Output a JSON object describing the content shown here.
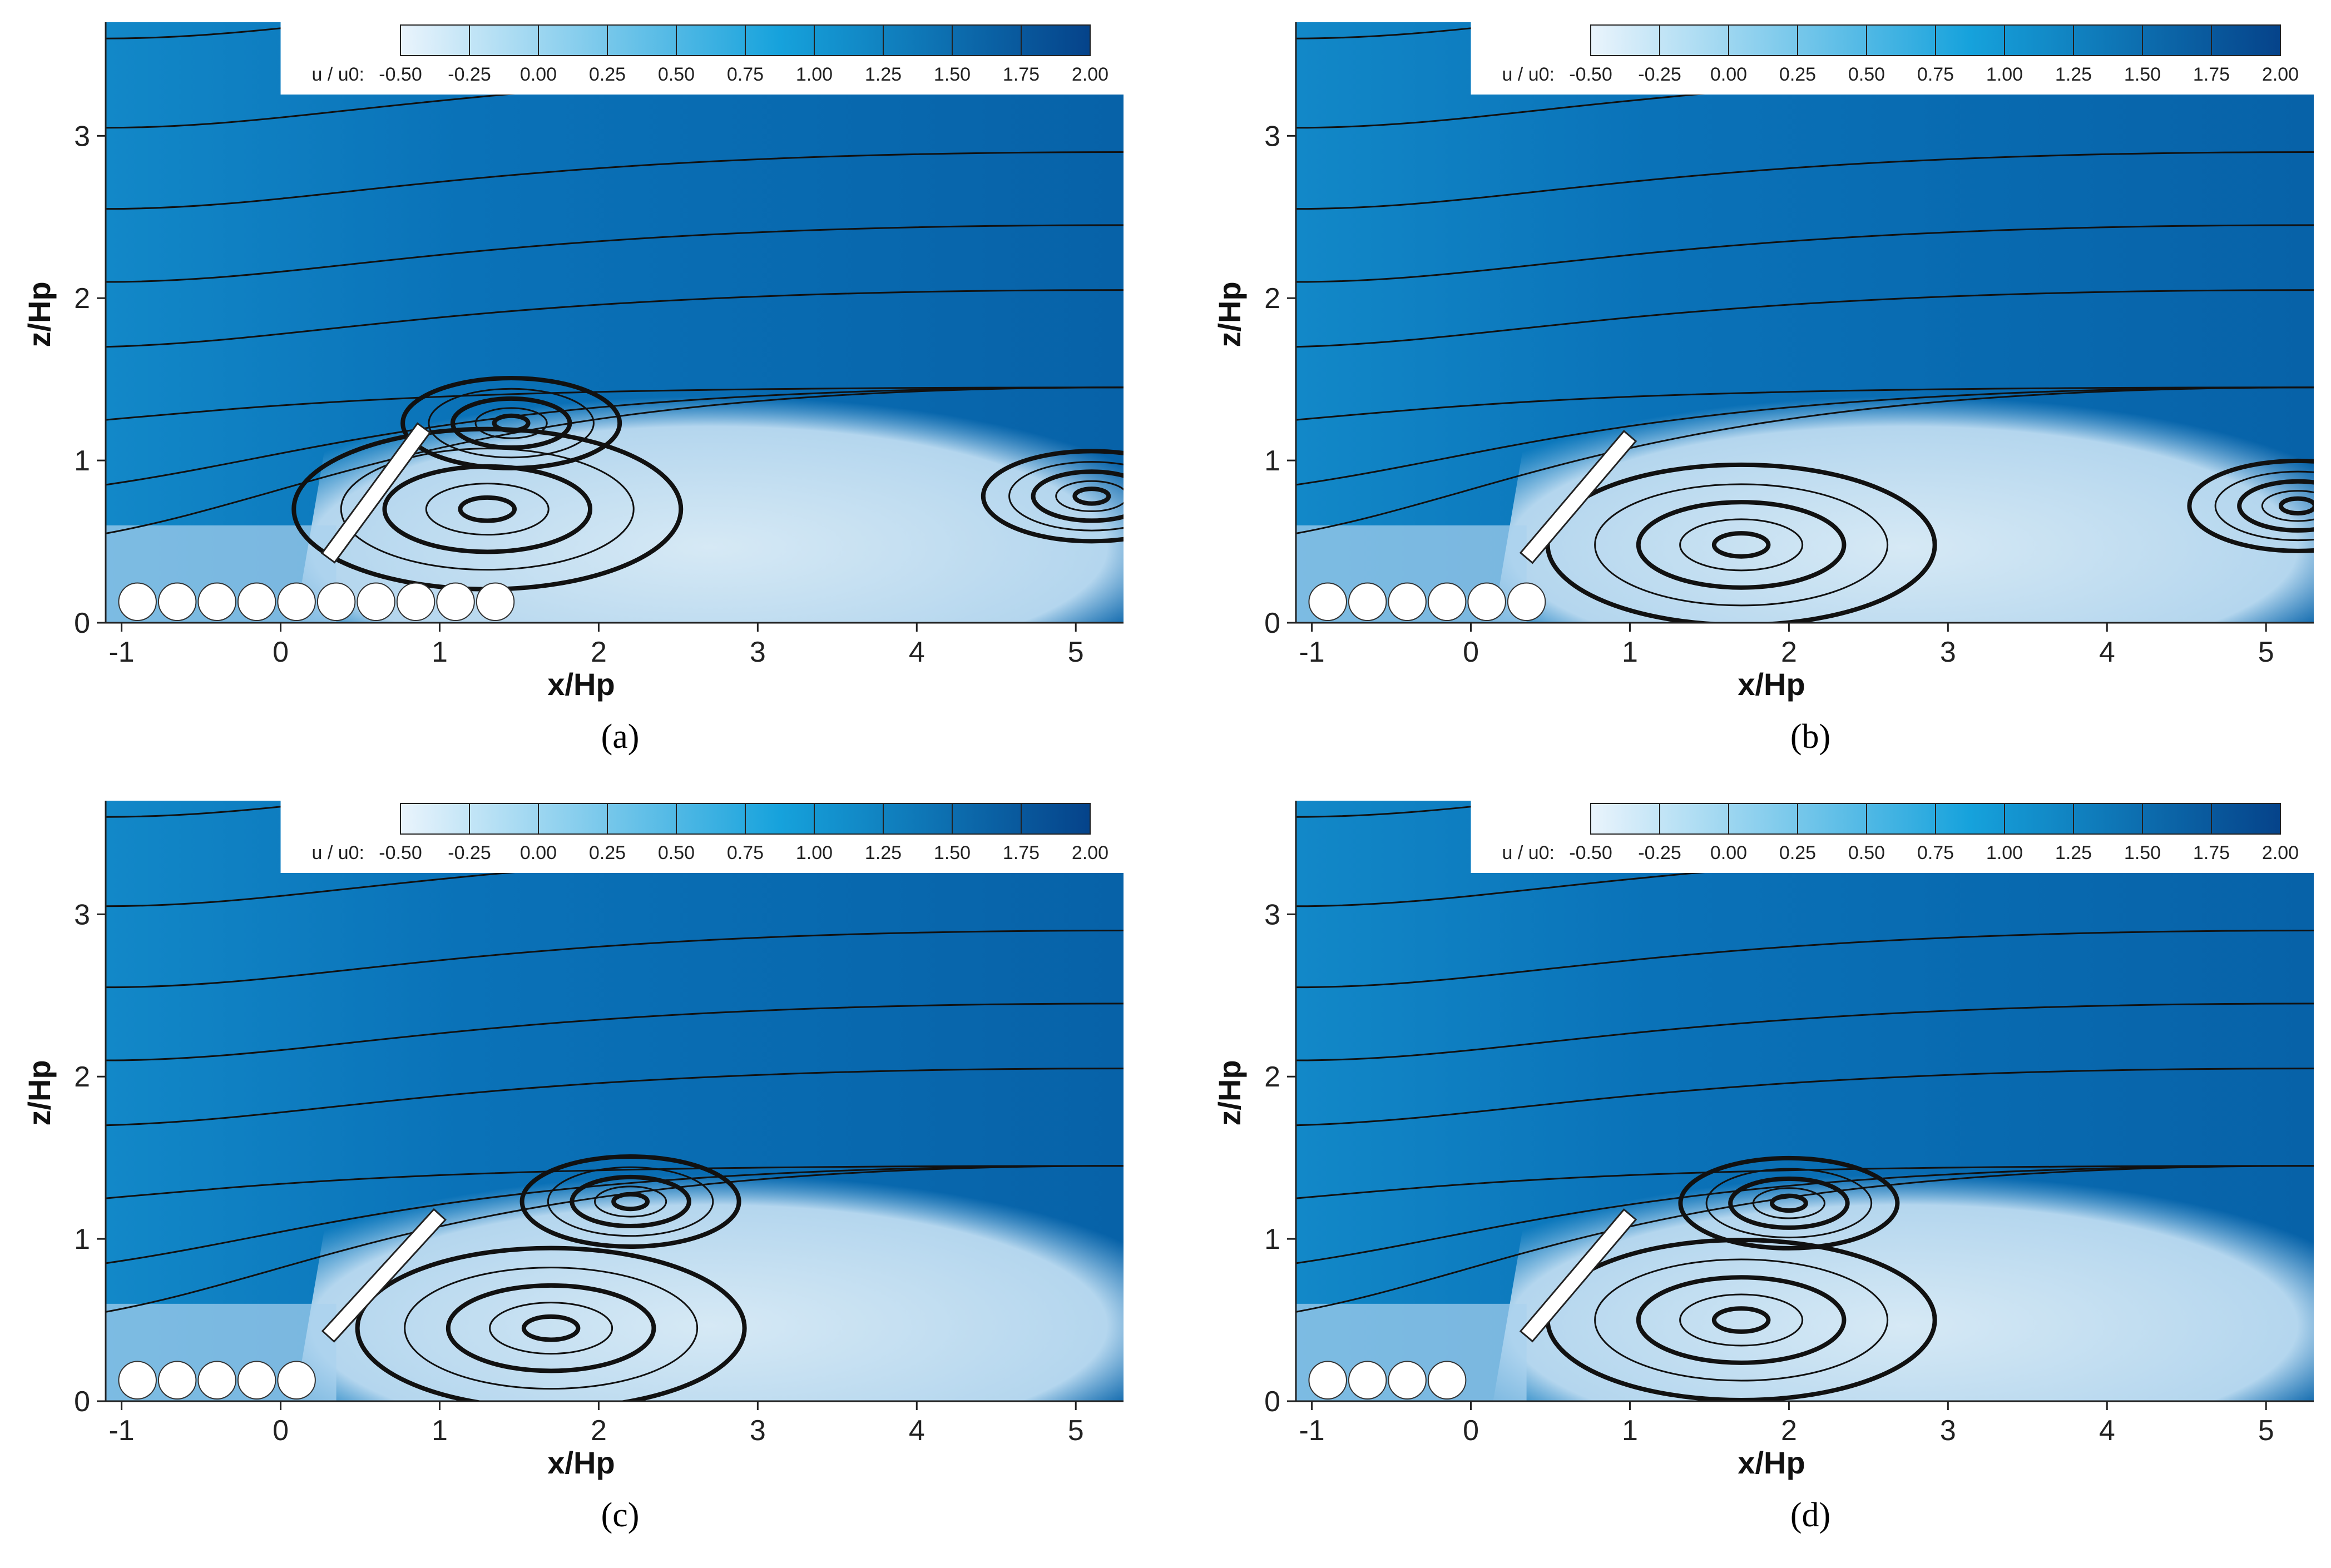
{
  "chart_data": [
    {
      "type": "heatmap",
      "panel": "a",
      "caption": "(a)",
      "xlabel": "x/Hp",
      "ylabel": "z/Hp",
      "xlim": [
        -1.1,
        5.3
      ],
      "ylim": [
        0,
        3.7
      ],
      "xticks": [
        "-1",
        "0",
        "1",
        "2",
        "3",
        "4",
        "5"
      ],
      "yticks": [
        "0",
        "1",
        "2",
        "3"
      ],
      "colorbar": {
        "label": "u / u0:",
        "ticks": [
          "-0.50",
          "-0.25",
          "0.00",
          "0.25",
          "0.50",
          "0.75",
          "1.00",
          "1.25",
          "1.50",
          "1.75",
          "2.00"
        ]
      },
      "cylinders_count": 10,
      "plate": {
        "x_start": 0.3,
        "z_start": 0.4,
        "x_end": 0.9,
        "z_end": 1.2
      },
      "vortices": [
        {
          "x": 1.3,
          "z": 0.7
        },
        {
          "x": 1.45,
          "z": 1.23
        },
        {
          "x": 5.1,
          "z": 0.78
        }
      ]
    },
    {
      "type": "heatmap",
      "panel": "b",
      "caption": "(b)",
      "xlabel": "x/Hp",
      "ylabel": "z/Hp",
      "xlim": [
        -1.1,
        5.3
      ],
      "ylim": [
        0,
        3.7
      ],
      "xticks": [
        "-1",
        "0",
        "1",
        "2",
        "3",
        "4",
        "5"
      ],
      "yticks": [
        "0",
        "1",
        "2",
        "3"
      ],
      "colorbar": {
        "label": "u / u0:",
        "ticks": [
          "-0.50",
          "-0.25",
          "0.00",
          "0.25",
          "0.50",
          "0.75",
          "1.00",
          "1.25",
          "1.50",
          "1.75",
          "2.00"
        ]
      },
      "cylinders_count": 6,
      "plate": {
        "x_start": 0.35,
        "z_start": 0.4,
        "x_end": 1.0,
        "z_end": 1.15
      },
      "vortices": [
        {
          "x": 1.7,
          "z": 0.48
        },
        {
          "x": 5.2,
          "z": 0.72
        }
      ]
    },
    {
      "type": "heatmap",
      "panel": "c",
      "caption": "(c)",
      "xlabel": "x/Hp",
      "ylabel": "z/Hp",
      "xlim": [
        -1.1,
        5.3
      ],
      "ylim": [
        0,
        3.7
      ],
      "xticks": [
        "-1",
        "0",
        "1",
        "2",
        "3",
        "4",
        "5"
      ],
      "yticks": [
        "0",
        "1",
        "2",
        "3"
      ],
      "colorbar": {
        "label": "u / u0:",
        "ticks": [
          "-0.50",
          "-0.25",
          "0.00",
          "0.25",
          "0.50",
          "0.75",
          "1.00",
          "1.25",
          "1.50",
          "1.75",
          "2.00"
        ]
      },
      "cylinders_count": 5,
      "plate": {
        "x_start": 0.3,
        "z_start": 0.4,
        "x_end": 1.0,
        "z_end": 1.15
      },
      "vortices": [
        {
          "x": 1.7,
          "z": 0.45
        },
        {
          "x": 2.2,
          "z": 1.23
        }
      ]
    },
    {
      "type": "heatmap",
      "panel": "d",
      "caption": "(d)",
      "xlabel": "x/Hp",
      "ylabel": "z/Hp",
      "xlim": [
        -1.1,
        5.3
      ],
      "ylim": [
        0,
        3.7
      ],
      "xticks": [
        "-1",
        "0",
        "1",
        "2",
        "3",
        "4",
        "5"
      ],
      "yticks": [
        "0",
        "1",
        "2",
        "3"
      ],
      "colorbar": {
        "label": "u / u0:",
        "ticks": [
          "-0.50",
          "-0.25",
          "0.00",
          "0.25",
          "0.50",
          "0.75",
          "1.00",
          "1.25",
          "1.50",
          "1.75",
          "2.00"
        ]
      },
      "cylinders_count": 4,
      "plate": {
        "x_start": 0.35,
        "z_start": 0.4,
        "x_end": 1.0,
        "z_end": 1.15
      },
      "vortices": [
        {
          "x": 1.7,
          "z": 0.5
        },
        {
          "x": 2.0,
          "z": 1.22
        }
      ]
    }
  ],
  "colors": {
    "free_stream": "#0a72b8",
    "upper_fast": "#0762a8",
    "wake_light": "#d6e9f5",
    "colorbar_low": "#eaf4fc",
    "colorbar_mid": "#16a2dc",
    "colorbar_high": "#05438a",
    "streamline": "#111111"
  }
}
